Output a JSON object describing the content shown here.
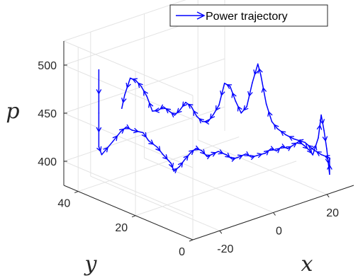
{
  "chart_data": {
    "type": "line",
    "projection": "3d",
    "legend": {
      "position": "top-right",
      "entries": [
        "Power trajectory"
      ]
    },
    "grid": true,
    "axes": {
      "x": {
        "label": "x",
        "ticks": [
          -20,
          0,
          20
        ]
      },
      "y": {
        "label": "y",
        "ticks": [
          0,
          20,
          40
        ]
      },
      "z": {
        "label": "p",
        "ticks": [
          400,
          450,
          500
        ]
      }
    },
    "series": [
      {
        "name": "Power trajectory",
        "color": "#0000ff",
        "marker": "arrow",
        "points": [
          [
            -18,
            44,
            485
          ],
          [
            -18,
            44,
            440
          ],
          [
            -18,
            44,
            405
          ],
          [
            -18,
            43,
            398
          ],
          [
            -15,
            42,
            410
          ],
          [
            -13,
            41,
            420
          ],
          [
            -12,
            40,
            425
          ],
          [
            -11,
            39,
            422
          ],
          [
            -9,
            37,
            420
          ],
          [
            -8,
            36,
            412
          ],
          [
            -7,
            34,
            407
          ],
          [
            -6,
            33,
            400
          ],
          [
            -5,
            31,
            392
          ],
          [
            -5,
            30,
            385
          ],
          [
            -4,
            29,
            390
          ],
          [
            -3,
            28,
            398
          ],
          [
            -2,
            27,
            405
          ],
          [
            -1,
            26,
            410
          ],
          [
            0,
            25,
            408
          ],
          [
            1,
            24,
            402
          ],
          [
            2,
            23,
            405
          ],
          [
            3,
            22,
            408
          ],
          [
            4,
            20,
            406
          ],
          [
            5,
            19,
            402
          ],
          [
            6,
            18,
            404
          ],
          [
            8,
            17,
            407
          ],
          [
            9,
            16,
            404
          ],
          [
            10,
            15,
            406
          ],
          [
            11,
            13,
            410
          ],
          [
            12,
            12,
            415
          ],
          [
            13,
            11,
            413
          ],
          [
            14,
            10,
            418
          ],
          [
            15,
            9,
            416
          ],
          [
            16,
            8,
            420
          ],
          [
            17,
            7,
            424
          ],
          [
            18,
            6,
            420
          ],
          [
            19,
            5,
            415
          ],
          [
            19,
            4,
            412
          ],
          [
            20,
            3,
            430
          ],
          [
            20,
            2,
            455
          ],
          [
            20,
            1,
            440
          ],
          [
            21,
            1,
            420
          ],
          [
            21,
            0,
            395
          ],
          [
            21,
            0,
            412
          ],
          [
            19,
            1,
            416
          ],
          [
            17,
            2,
            422
          ],
          [
            15,
            3,
            430
          ],
          [
            13,
            5,
            433
          ],
          [
            11,
            6,
            438
          ],
          [
            9,
            7,
            445
          ],
          [
            8,
            8,
            452
          ],
          [
            7,
            9,
            470
          ],
          [
            6,
            10,
            500
          ],
          [
            6,
            11,
            510
          ],
          [
            5,
            12,
            490
          ],
          [
            4,
            13,
            465
          ],
          [
            3,
            14,
            458
          ],
          [
            2,
            15,
            470
          ],
          [
            1,
            16,
            485
          ],
          [
            0,
            17,
            488
          ],
          [
            -1,
            18,
            465
          ],
          [
            -2,
            19,
            455
          ],
          [
            -3,
            20,
            447
          ],
          [
            -4,
            21,
            447
          ],
          [
            -5,
            22,
            452
          ],
          [
            -6,
            23,
            462
          ],
          [
            -7,
            24,
            466
          ],
          [
            -8,
            25,
            458
          ],
          [
            -9,
            26,
            452
          ],
          [
            -10,
            27,
            456
          ],
          [
            -11,
            28,
            460
          ],
          [
            -12,
            29,
            456
          ],
          [
            -13,
            30,
            455
          ],
          [
            -14,
            31,
            470
          ],
          [
            -15,
            32,
            480
          ],
          [
            -16,
            33,
            486
          ],
          [
            -17,
            34,
            488
          ],
          [
            -18,
            35,
            470
          ],
          [
            -18,
            36,
            455
          ]
        ]
      }
    ]
  }
}
